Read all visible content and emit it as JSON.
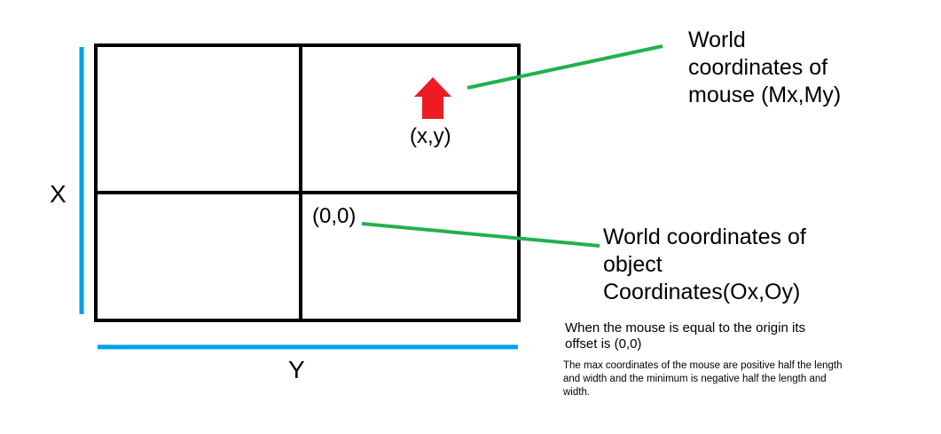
{
  "labels": {
    "x_axis": "X",
    "y_axis": "Y",
    "mouse_point": "(x,y)",
    "origin_point": "(0,0)"
  },
  "mouse_description": {
    "lines": [
      "World",
      "coordinates of",
      "mouse (Mx,My)"
    ]
  },
  "object_description": {
    "lines": [
      "World coordinates of",
      "object",
      "Coordinates(Ox,Oy)"
    ]
  },
  "notes": {
    "origin_offset": [
      "When the mouse is equal to the origin its",
      "offset is (0,0)"
    ],
    "max_min": [
      "The max coordinates of the mouse are positive half the length",
      "and width and the minimum is negative half the length and",
      "width."
    ]
  },
  "colors": {
    "grid": "#000000",
    "axis": "#00a2e8",
    "pointer_line": "#22b14c",
    "arrow": "#ed1c24",
    "text": "#000000"
  },
  "icons": {
    "mouse_marker": "red-up-arrow-icon"
  }
}
